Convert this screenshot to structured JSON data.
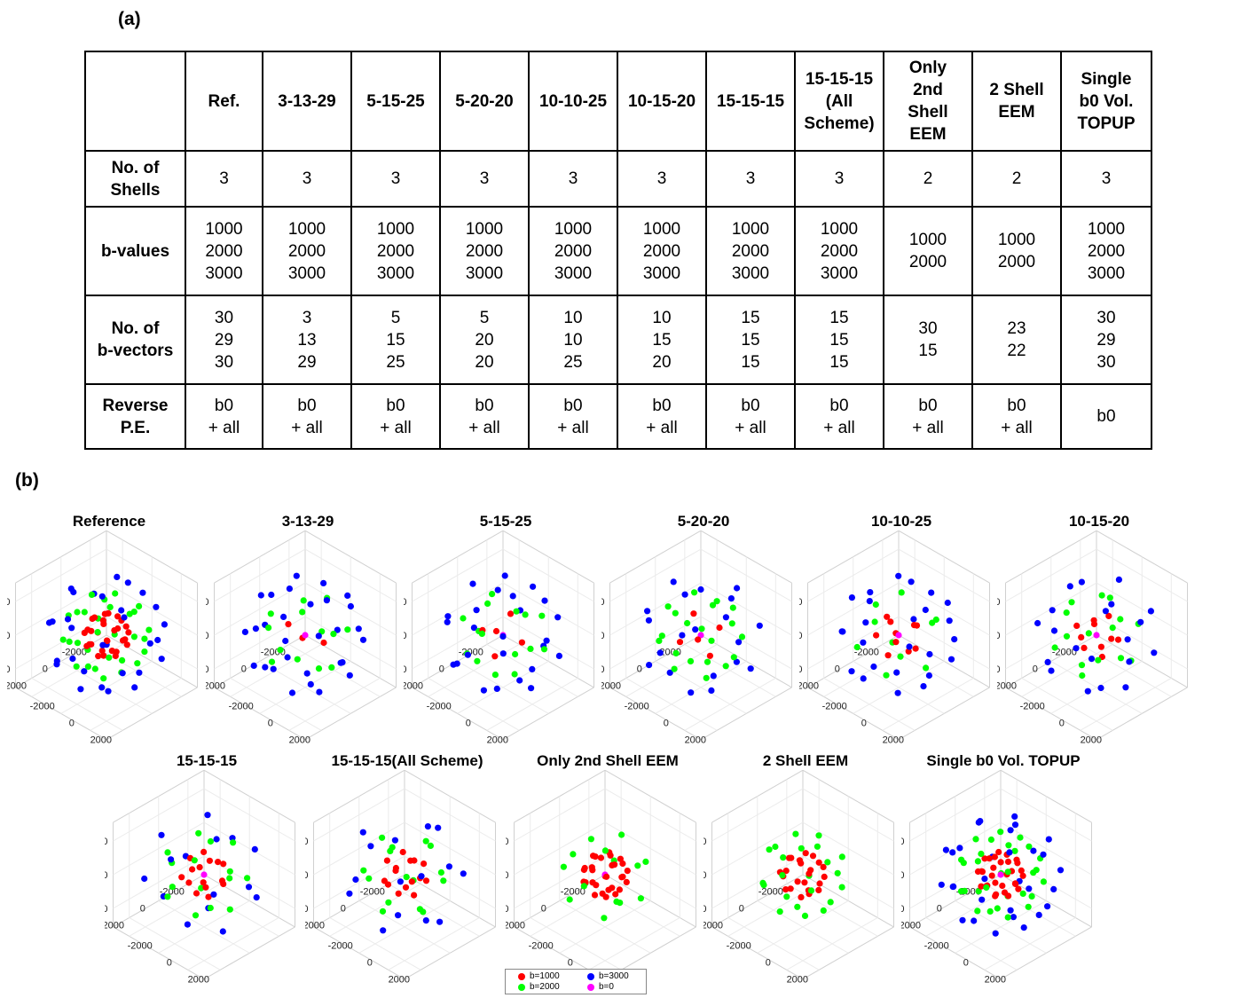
{
  "panel_a_label": "(a)",
  "panel_b_label": "(b)",
  "table": {
    "headers": [
      "",
      "Ref.",
      "3-13-29",
      "5-15-25",
      "5-20-20",
      "10-10-25",
      "10-15-20",
      "15-15-15",
      "15-15-15 (All Scheme)",
      "Only 2nd Shell EEM",
      "2 Shell EEM",
      "Single b0 Vol. TOPUP"
    ],
    "header_lines": [
      [],
      [
        "Ref."
      ],
      [
        "3-13-29"
      ],
      [
        "5-15-25"
      ],
      [
        "5-20-20"
      ],
      [
        "10-10-25"
      ],
      [
        "10-15-20"
      ],
      [
        "15-15-15"
      ],
      [
        "15-15-15",
        "(All",
        "Scheme)"
      ],
      [
        "Only",
        "2nd",
        "Shell",
        "EEM"
      ],
      [
        "2 Shell",
        "EEM"
      ],
      [
        "Single",
        "b0 Vol.",
        "TOPUP"
      ]
    ],
    "rows": [
      {
        "label": [
          "No. of",
          "Shells"
        ],
        "cells": [
          [
            "3"
          ],
          [
            "3"
          ],
          [
            "3"
          ],
          [
            "3"
          ],
          [
            "3"
          ],
          [
            "3"
          ],
          [
            "3"
          ],
          [
            "3"
          ],
          [
            "2"
          ],
          [
            "2"
          ],
          [
            "3"
          ]
        ]
      },
      {
        "label": [
          "b-values"
        ],
        "cells": [
          [
            "1000",
            "2000",
            "3000"
          ],
          [
            "1000",
            "2000",
            "3000"
          ],
          [
            "1000",
            "2000",
            "3000"
          ],
          [
            "1000",
            "2000",
            "3000"
          ],
          [
            "1000",
            "2000",
            "3000"
          ],
          [
            "1000",
            "2000",
            "3000"
          ],
          [
            "1000",
            "2000",
            "3000"
          ],
          [
            "1000",
            "2000",
            "3000"
          ],
          [
            "1000",
            "2000"
          ],
          [
            "1000",
            "2000"
          ],
          [
            "1000",
            "2000",
            "3000"
          ]
        ]
      },
      {
        "label": [
          "No. of",
          "b-vectors"
        ],
        "cells": [
          [
            "30",
            "29",
            "30"
          ],
          [
            "3",
            "13",
            "29"
          ],
          [
            "5",
            "15",
            "25"
          ],
          [
            "5",
            "20",
            "20"
          ],
          [
            "10",
            "10",
            "25"
          ],
          [
            "10",
            "15",
            "20"
          ],
          [
            "15",
            "15",
            "15"
          ],
          [
            "15",
            "15",
            "15"
          ],
          [
            "30",
            "15"
          ],
          [
            "23",
            "22"
          ],
          [
            "30",
            "29",
            "30"
          ]
        ]
      },
      {
        "label": [
          "Reverse",
          "P.E."
        ],
        "cells": [
          [
            "b0",
            "+ all"
          ],
          [
            "b0",
            "+ all"
          ],
          [
            "b0",
            "+ all"
          ],
          [
            "b0",
            "+ all"
          ],
          [
            "b0",
            "+ all"
          ],
          [
            "b0",
            "+ all"
          ],
          [
            "b0",
            "+ all"
          ],
          [
            "b0",
            "+ all"
          ],
          [
            "b0",
            "+ all"
          ],
          [
            "b0",
            "+ all"
          ],
          [
            "b0"
          ]
        ]
      }
    ]
  },
  "plots": [
    {
      "title": "Reference",
      "b1000": 30,
      "b2000": 29,
      "b3000": 30,
      "b0": 0
    },
    {
      "title": "3-13-29",
      "b1000": 3,
      "b2000": 13,
      "b3000": 29,
      "b0": 1
    },
    {
      "title": "5-15-25",
      "b1000": 5,
      "b2000": 15,
      "b3000": 25,
      "b0": 1
    },
    {
      "title": "5-20-20",
      "b1000": 5,
      "b2000": 20,
      "b3000": 20,
      "b0": 1
    },
    {
      "title": "10-10-25",
      "b1000": 10,
      "b2000": 10,
      "b3000": 25,
      "b0": 1
    },
    {
      "title": "10-15-20",
      "b1000": 10,
      "b2000": 15,
      "b3000": 20,
      "b0": 1
    },
    {
      "title": "15-15-15",
      "b1000": 15,
      "b2000": 15,
      "b3000": 15,
      "b0": 1
    },
    {
      "title": "15-15-15(All Scheme)",
      "b1000": 15,
      "b2000": 15,
      "b3000": 15,
      "b0": 0
    },
    {
      "title": "Only 2nd Shell EEM",
      "b1000": 30,
      "b2000": 15,
      "b3000": 0,
      "b0": 1
    },
    {
      "title": "2 Shell EEM",
      "b1000": 23,
      "b2000": 22,
      "b3000": 0,
      "b0": 0
    },
    {
      "title": "Single b0 Vol. TOPUP",
      "b1000": 30,
      "b2000": 29,
      "b3000": 30,
      "b0": 1
    }
  ],
  "axis_ticks": {
    "z": [
      "2000",
      "0",
      "-2000"
    ],
    "x": [
      "2000",
      "0",
      "-2000"
    ],
    "y": [
      "2000",
      "0",
      "-2000"
    ]
  },
  "legend": {
    "items": [
      {
        "label": "b=1000",
        "color": "#ff0000"
      },
      {
        "label": "b=3000",
        "color": "#0000ff"
      },
      {
        "label": "b=2000",
        "color": "#00ff00"
      },
      {
        "label": "b=0",
        "color": "#ff00ff"
      }
    ]
  },
  "colors": {
    "b1000": "#ff0000",
    "b2000": "#00ff00",
    "b3000": "#0000ff",
    "b0": "#ff00ff",
    "box": "#d0d0d0"
  }
}
